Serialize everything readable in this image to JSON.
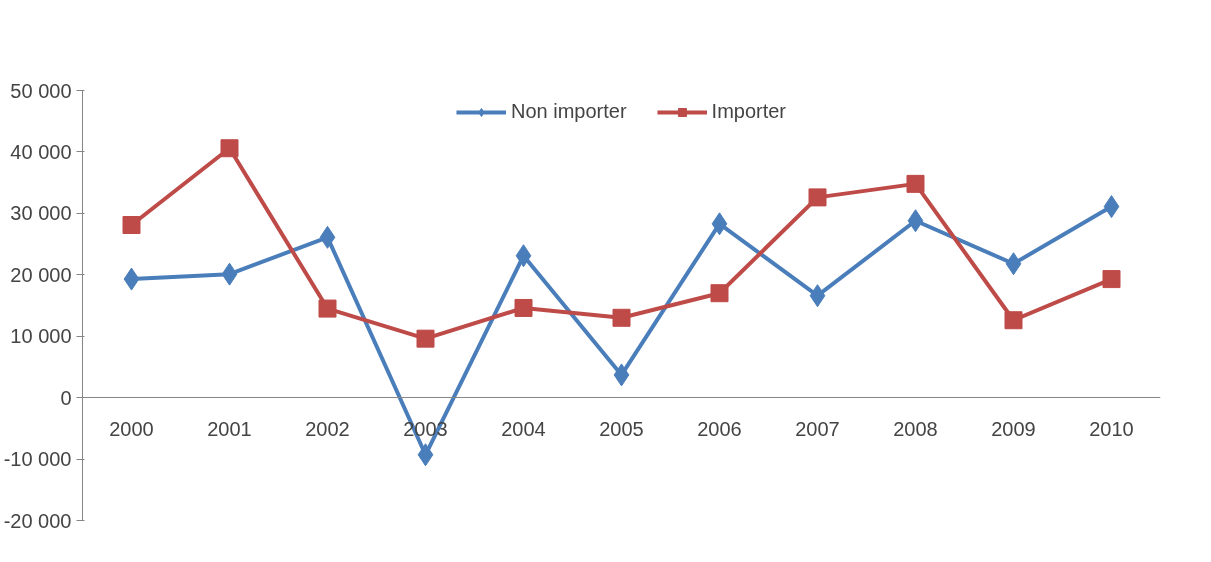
{
  "chart_data": {
    "type": "line",
    "categories": [
      "2000",
      "2001",
      "2002",
      "2003",
      "2004",
      "2005",
      "2006",
      "2007",
      "2008",
      "2009",
      "2010"
    ],
    "series": [
      {
        "name": "Non importer",
        "color": "#4a7ebb",
        "marker": "diamond",
        "values": [
          19300,
          20100,
          26100,
          -9300,
          23100,
          3700,
          28300,
          16600,
          28800,
          21800,
          31100
        ]
      },
      {
        "name": "Importer",
        "color": "#be4b48",
        "marker": "square",
        "values": [
          28100,
          40600,
          14500,
          9600,
          14600,
          13000,
          17000,
          32600,
          34800,
          12600,
          19300
        ]
      }
    ],
    "ylim": [
      -20000,
      50000
    ],
    "yticks": [
      {
        "value": -20000,
        "label": "-20 000"
      },
      {
        "value": -10000,
        "label": "-10 000"
      },
      0,
      {
        "value": 10000,
        "label": "10 000"
      },
      {
        "value": 20000,
        "label": "20 000"
      },
      {
        "value": 30000,
        "label": "30 000"
      },
      {
        "value": 40000,
        "label": "40 000"
      },
      {
        "value": 50000,
        "label": "50 000"
      }
    ],
    "grid": false,
    "legend": "top",
    "line_style": "solid"
  }
}
